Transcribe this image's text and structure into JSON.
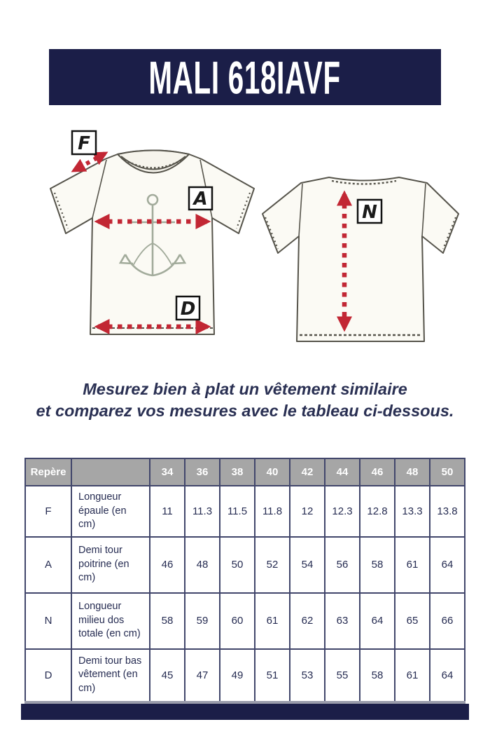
{
  "banner": {
    "title": "MALI 618IAVF",
    "bg_color": "#1b1e48",
    "text_color": "#ffffff"
  },
  "diagram": {
    "arrow_color": "#c22734",
    "labels": {
      "F": "F",
      "A": "A",
      "D": "D",
      "N": "N"
    }
  },
  "instructions": {
    "line1": "Mesurez bien à plat un vêtement similaire",
    "line2": "et comparez vos mesures avec le tableau ci-dessous."
  },
  "table": {
    "header": [
      "Repère",
      "",
      "34",
      "36",
      "38",
      "40",
      "42",
      "44",
      "46",
      "48",
      "50"
    ],
    "rows": [
      {
        "code": "F",
        "label": "Longueur épaule (en cm)",
        "values": [
          "11",
          "11.3",
          "11.5",
          "11.8",
          "12",
          "12.3",
          "12.8",
          "13.3",
          "13.8"
        ]
      },
      {
        "code": "A",
        "label": "Demi tour poitrine (en cm)",
        "values": [
          "46",
          "48",
          "50",
          "52",
          "54",
          "56",
          "58",
          "61",
          "64"
        ]
      },
      {
        "code": "N",
        "label": "Longueur milieu dos totale (en cm)",
        "values": [
          "58",
          "59",
          "60",
          "61",
          "62",
          "63",
          "64",
          "65",
          "66"
        ]
      },
      {
        "code": "D",
        "label": "Demi tour bas vêtement (en cm)",
        "values": [
          "45",
          "47",
          "49",
          "51",
          "53",
          "55",
          "58",
          "61",
          "64"
        ]
      }
    ]
  },
  "footer": {
    "bg_color": "#1b1e48"
  }
}
